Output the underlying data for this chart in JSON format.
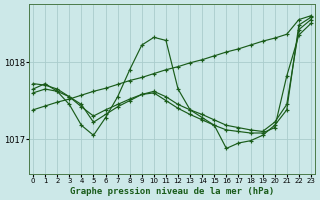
{
  "title": "Graphe pression niveau de la mer (hPa)",
  "background_color": "#cce8e8",
  "grid_color": "#aacccc",
  "line_color": "#1a5c1a",
  "xlim": [
    -0.3,
    23.3
  ],
  "ylim": [
    1016.55,
    1018.75
  ],
  "yticks": [
    1017,
    1018
  ],
  "xticks": [
    0,
    1,
    2,
    3,
    4,
    5,
    6,
    7,
    8,
    9,
    10,
    11,
    12,
    13,
    14,
    15,
    16,
    17,
    18,
    19,
    20,
    21,
    22,
    23
  ],
  "series": [
    {
      "x": [
        0,
        1,
        2,
        3,
        4,
        5,
        6,
        7,
        8,
        9,
        10,
        11,
        12,
        13,
        14,
        15,
        16,
        17,
        18,
        19,
        20,
        21,
        22,
        23
      ],
      "y": [
        1017.38,
        1017.43,
        1017.48,
        1017.52,
        1017.57,
        1017.62,
        1017.66,
        1017.71,
        1017.76,
        1017.8,
        1017.85,
        1017.9,
        1017.94,
        1017.99,
        1018.03,
        1018.08,
        1018.13,
        1018.17,
        1018.22,
        1018.27,
        1018.31,
        1018.36,
        1018.55,
        1018.6
      ]
    },
    {
      "x": [
        0,
        1,
        2,
        3,
        4,
        5,
        6,
        7,
        8,
        9,
        10,
        11,
        12,
        13,
        14,
        15,
        16,
        17,
        18,
        19,
        20,
        21,
        22,
        23
      ],
      "y": [
        1017.65,
        1017.72,
        1017.62,
        1017.45,
        1017.18,
        1017.05,
        1017.28,
        1017.55,
        1017.9,
        1018.22,
        1018.32,
        1018.28,
        1017.65,
        1017.38,
        1017.28,
        1017.18,
        1016.88,
        1016.95,
        1016.98,
        1017.05,
        1017.18,
        1017.38,
        1018.48,
        1018.58
      ]
    },
    {
      "x": [
        0,
        1,
        2,
        3,
        4,
        5,
        6,
        7,
        8,
        9,
        10,
        11,
        12,
        13,
        14,
        15,
        16,
        17,
        18,
        19,
        20,
        21,
        22,
        23
      ],
      "y": [
        1017.6,
        1017.65,
        1017.62,
        1017.55,
        1017.42,
        1017.3,
        1017.38,
        1017.45,
        1017.52,
        1017.58,
        1017.62,
        1017.55,
        1017.45,
        1017.38,
        1017.32,
        1017.25,
        1017.18,
        1017.15,
        1017.12,
        1017.1,
        1017.22,
        1017.45,
        1018.42,
        1018.55
      ]
    },
    {
      "x": [
        0,
        1,
        2,
        3,
        4,
        5,
        6,
        7,
        8,
        9,
        10,
        11,
        12,
        13,
        14,
        15,
        16,
        17,
        18,
        19,
        20,
        21,
        22,
        23
      ],
      "y": [
        1017.72,
        1017.7,
        1017.65,
        1017.55,
        1017.45,
        1017.22,
        1017.32,
        1017.42,
        1017.5,
        1017.58,
        1017.6,
        1017.5,
        1017.4,
        1017.32,
        1017.25,
        1017.18,
        1017.12,
        1017.1,
        1017.08,
        1017.08,
        1017.15,
        1017.82,
        1018.35,
        1018.5
      ]
    }
  ]
}
